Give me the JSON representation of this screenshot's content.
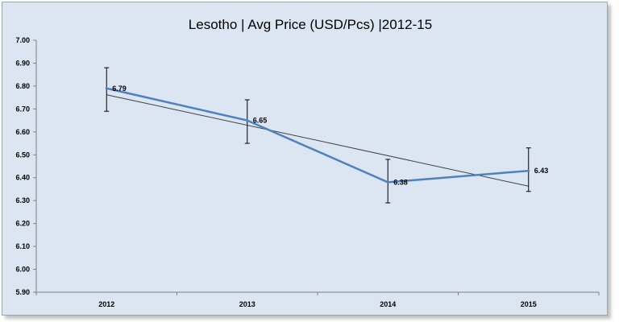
{
  "chart_data": {
    "type": "line",
    "title": "Lesotho | Avg Price (USD/Pcs) |2012-15",
    "categories": [
      "2012",
      "2013",
      "2014",
      "2015"
    ],
    "series": [
      {
        "values": [
          6.79,
          6.65,
          6.38,
          6.43
        ],
        "data_labels": [
          "6.79",
          "6.65",
          "6.38",
          "6.43"
        ],
        "error_bars": [
          [
            6.69,
            6.88
          ],
          [
            6.55,
            6.74
          ],
          [
            6.29,
            6.48
          ],
          [
            6.34,
            6.53
          ]
        ],
        "color": "#4f81bd"
      }
    ],
    "trendline": {
      "type": "linear",
      "values": [
        6.762,
        6.629,
        6.496,
        6.363
      ],
      "color": "#404040"
    },
    "ylim": [
      5.9,
      7.0
    ],
    "y_ticks": [
      "5.90",
      "6.00",
      "6.10",
      "6.20",
      "6.30",
      "6.40",
      "6.50",
      "6.60",
      "6.70",
      "6.80",
      "6.90",
      "7.00"
    ],
    "grid": false,
    "legend": "none",
    "background": "#dce6f2"
  }
}
